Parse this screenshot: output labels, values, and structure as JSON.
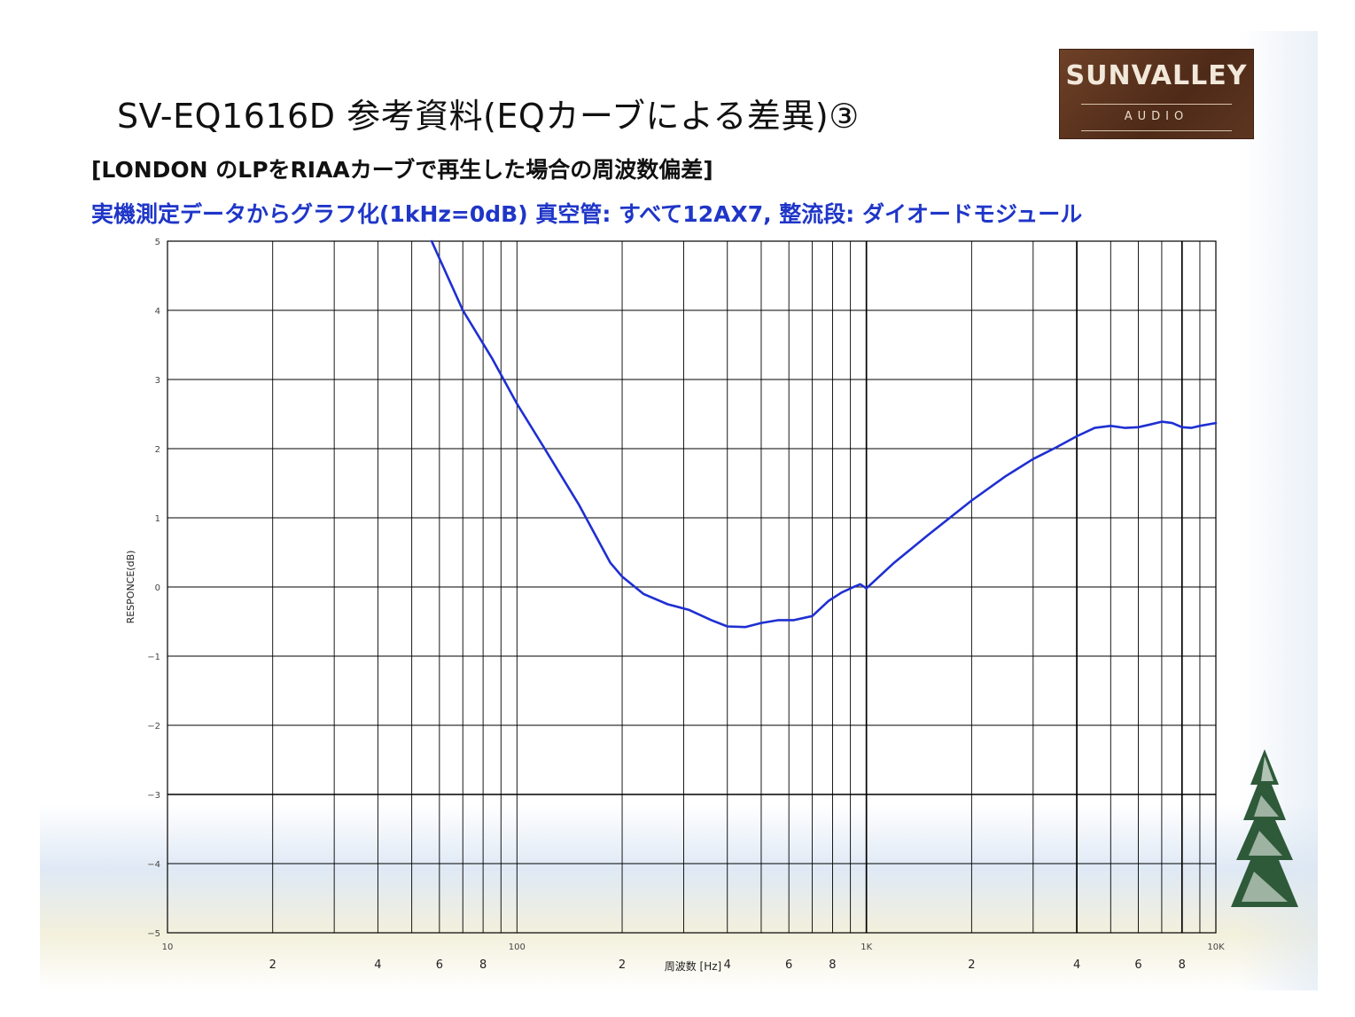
{
  "slide": {
    "title": "SV-EQ1616D 参考資料(EQカーブによる差異)③",
    "subtitle": "[LONDON のLPをRIAAカーブで再生した場合の周波数偏差]",
    "description": "実機測定データからグラフ化(1kHz=0dB) 真空管: すべて12AX7, 整流段: ダイオードモジュール",
    "accent_color": "#1f36c8"
  },
  "logo": {
    "main": "SUNVALLEY",
    "sub": "AUDIO",
    "bg_color": "#5a3321"
  },
  "chart_data": {
    "type": "line",
    "title": "",
    "xlabel": "周波数 [Hz]",
    "ylabel": "RESPONCE(dB)",
    "x_scale": "log",
    "xlim": [
      10,
      10000
    ],
    "ylim": [
      -5,
      5
    ],
    "grid": true,
    "y_ticks": [
      "5",
      "4",
      "3",
      "2",
      "1",
      "0",
      "−1",
      "−2",
      "−3",
      "−4",
      "−5"
    ],
    "x_decade_labels": [
      "10",
      "100",
      "1K",
      "10K"
    ],
    "x_minor_labels": [
      "2",
      "4",
      "6",
      "8",
      "2",
      "4",
      "6",
      "8",
      "2",
      "4",
      "6",
      "8"
    ],
    "line_color": "#1f2fd2",
    "series": [
      {
        "name": "",
        "x": [
          57,
          70,
          85,
          100,
          120,
          150,
          185,
          200,
          230,
          270,
          310,
          360,
          400,
          450,
          500,
          560,
          620,
          700,
          780,
          850,
          920,
          960,
          1000,
          1200,
          1500,
          2000,
          2500,
          3000,
          3500,
          4000,
          4500,
          5000,
          5500,
          6000,
          6500,
          7000,
          7500,
          8000,
          8500,
          9000,
          10000
        ],
        "y": [
          5.0,
          4.0,
          3.3,
          2.65,
          2.0,
          1.2,
          0.35,
          0.15,
          -0.1,
          -0.25,
          -0.33,
          -0.48,
          -0.57,
          -0.58,
          -0.52,
          -0.48,
          -0.48,
          -0.42,
          -0.2,
          -0.08,
          0.0,
          0.04,
          -0.02,
          0.35,
          0.75,
          1.25,
          1.6,
          1.85,
          2.02,
          2.18,
          2.3,
          2.33,
          2.3,
          2.31,
          2.35,
          2.39,
          2.37,
          2.31,
          2.3,
          2.33,
          2.37
        ]
      }
    ]
  }
}
